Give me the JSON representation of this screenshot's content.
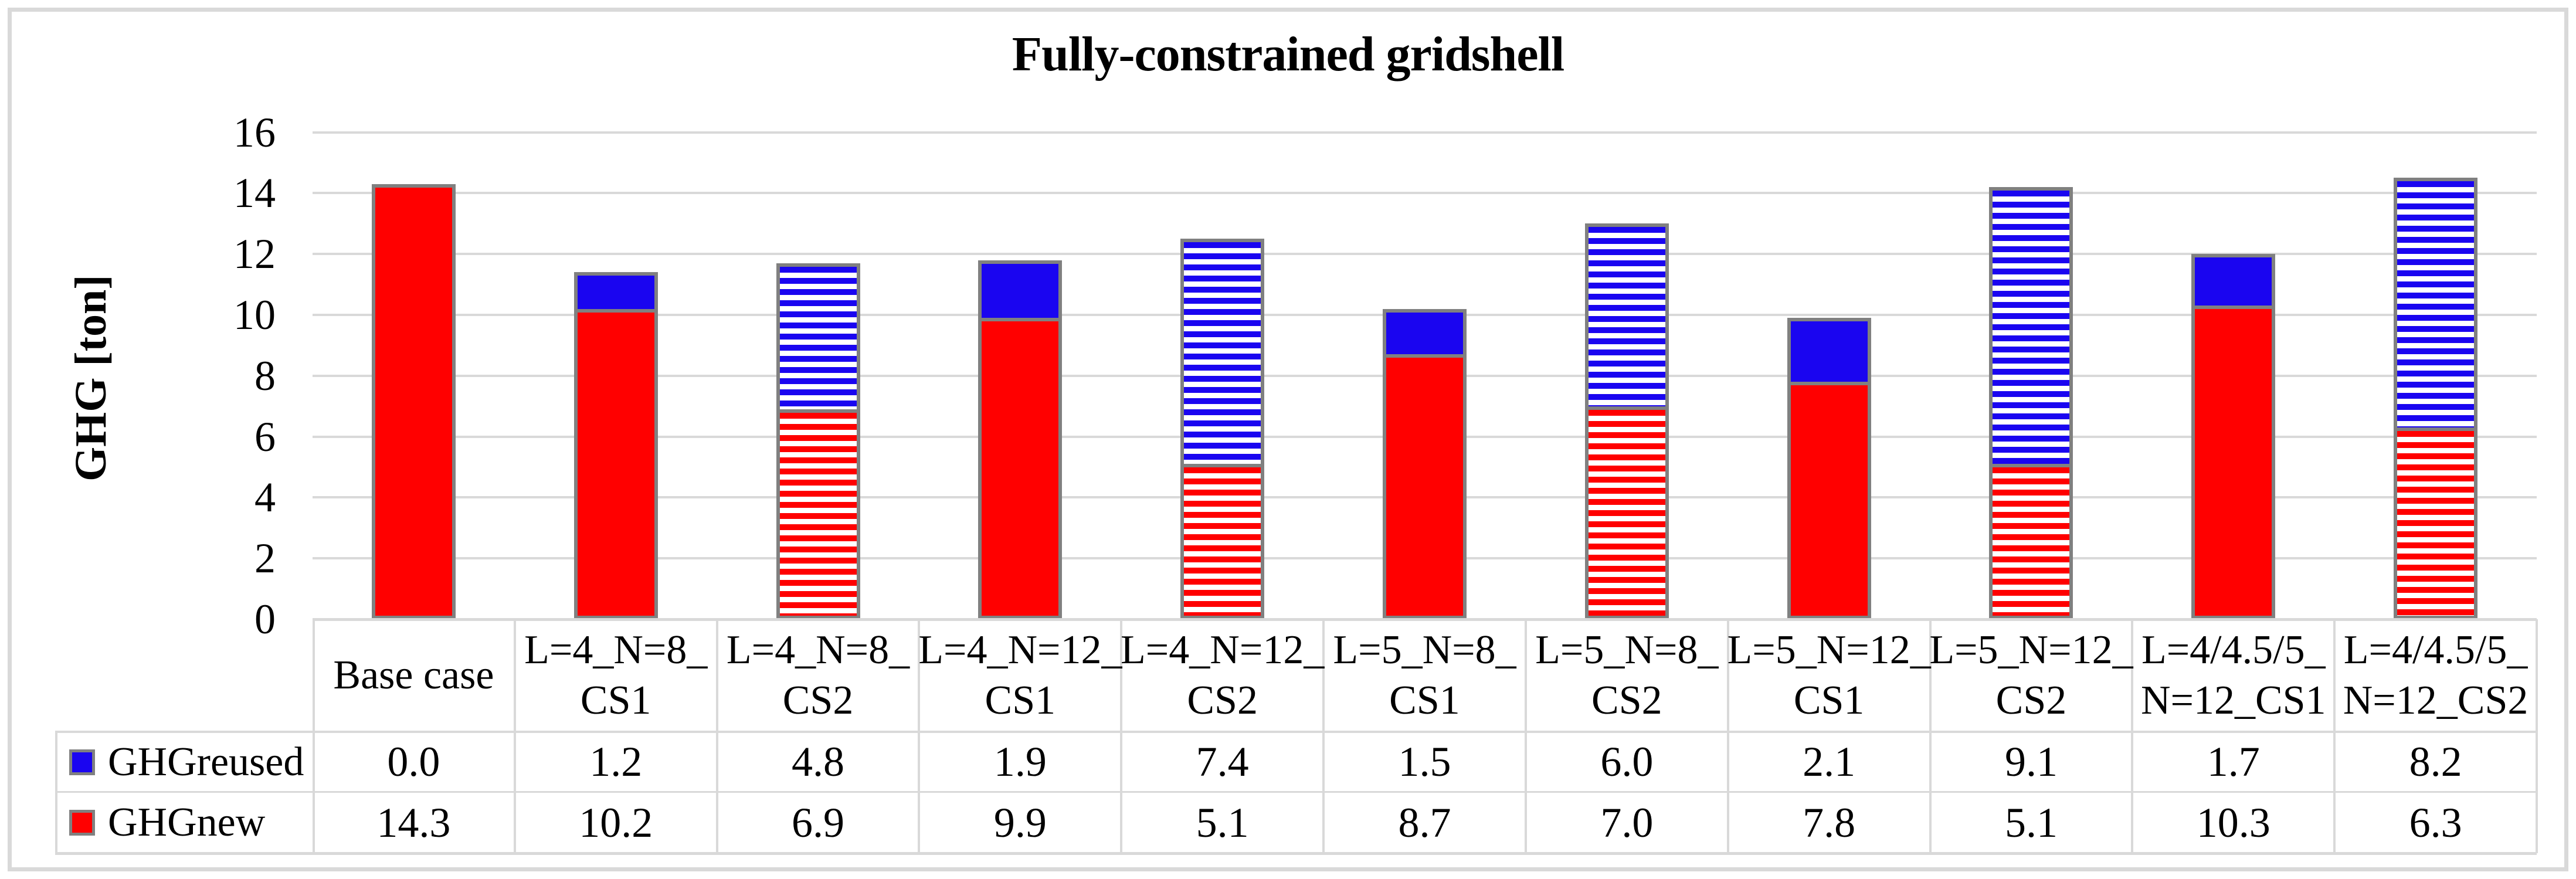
{
  "figure": {
    "title": "Fully-constrained gridshell"
  },
  "chart_data": {
    "type": "bar",
    "stacked": true,
    "title": "Fully-constrained gridshell",
    "xlabel": "",
    "ylabel": "GHG [ton]",
    "ylim": [
      0,
      16
    ],
    "yticks": [
      0,
      2,
      4,
      6,
      8,
      10,
      12,
      14,
      16
    ],
    "grid": true,
    "legend_position": "table-left",
    "categories": [
      "Base case",
      "L=4_N=8_CS1",
      "L=4_N=8_CS2",
      "L=4_N=12_CS1",
      "L=4_N=12_CS2",
      "L=5_N=8_CS1",
      "L=5_N=8_CS2",
      "L=5_N=12_CS1",
      "L=5_N=12_CS2",
      "L=4/4.5/5_N=12_CS1",
      "L=4/4.5/5_N=12_CS2"
    ],
    "category_label_lines": [
      [
        "Base case"
      ],
      [
        "L=4_N=8_",
        "CS1"
      ],
      [
        "L=4_N=8_",
        "CS2"
      ],
      [
        "L=4_N=12_",
        "CS1"
      ],
      [
        "L=4_N=12_",
        "CS2"
      ],
      [
        "L=5_N=8_",
        "CS1"
      ],
      [
        "L=5_N=8_",
        "CS2"
      ],
      [
        "L=5_N=12_",
        "CS1"
      ],
      [
        "L=5_N=12_",
        "CS2"
      ],
      [
        "L=4/4.5/5_",
        "N=12_CS1"
      ],
      [
        "L=4/4.5/5_",
        "N=12_CS2"
      ]
    ],
    "series": [
      {
        "name": "GHGreused",
        "color": "#1a05f0",
        "stack_position": "top",
        "values": [
          0.0,
          1.2,
          4.8,
          1.9,
          7.4,
          1.5,
          6.0,
          2.1,
          9.1,
          1.7,
          8.2
        ]
      },
      {
        "name": "GHGnew",
        "color": "#ff0000",
        "stack_position": "bottom",
        "values": [
          14.3,
          10.2,
          6.9,
          9.9,
          5.1,
          8.7,
          7.0,
          7.8,
          5.1,
          10.3,
          6.3
        ]
      }
    ],
    "bar_fill_pattern": [
      "solid",
      "solid",
      "striped",
      "solid",
      "striped",
      "solid",
      "striped",
      "solid",
      "striped",
      "solid",
      "striped"
    ]
  },
  "colors": {
    "ghg_new_red": "#ff0000",
    "ghg_reused_blue": "#1a05f0",
    "bar_border_gray": "#808080",
    "grid_line": "#d9d9d9",
    "table_line": "#d9d9d9",
    "figure_border": "#d9d9d9",
    "text": "#000000",
    "background": "#ffffff"
  }
}
